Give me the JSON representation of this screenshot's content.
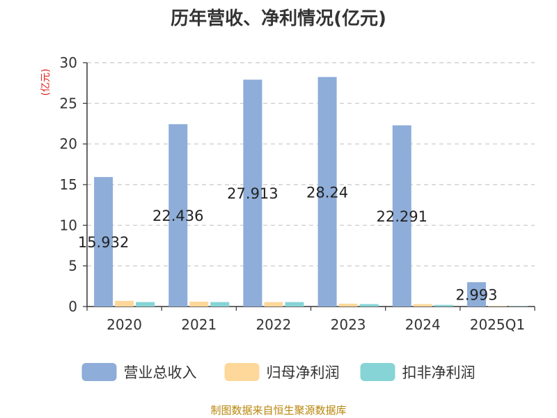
{
  "chart_data": {
    "type": "bar",
    "title": "历年营收、净利情况(亿元)",
    "ylabel": "(亿元)",
    "ylim": [
      0,
      30
    ],
    "yticks": [
      0,
      5,
      10,
      15,
      20,
      25,
      30
    ],
    "grid": true,
    "legend_position": "bottom",
    "categories": [
      "2020",
      "2021",
      "2022",
      "2023",
      "2024",
      "2025Q1"
    ],
    "series": [
      {
        "name": "营业总收入",
        "color": "#8eadd8",
        "values": [
          15.932,
          22.436,
          27.913,
          28.24,
          22.291,
          2.993
        ],
        "labels": [
          "15.932",
          "22.436",
          "27.913",
          "28.24",
          "22.291",
          "2.993"
        ]
      },
      {
        "name": "归母净利润",
        "color": "#fdd89a",
        "values": [
          0.7,
          0.6,
          0.55,
          0.35,
          0.3,
          0.05
        ]
      },
      {
        "name": "扣非净利润",
        "color": "#86d4d6",
        "values": [
          0.55,
          0.55,
          0.55,
          0.3,
          0.2,
          0.04
        ]
      }
    ]
  },
  "source": "制图数据来自恒生聚源数据库"
}
